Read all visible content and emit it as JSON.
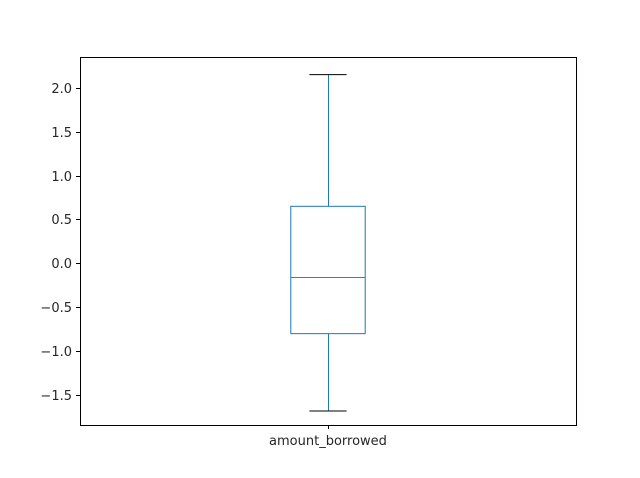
{
  "chart_data": {
    "type": "box",
    "categories": [
      "amount_borrowed"
    ],
    "series": [
      {
        "whisker_low": -1.68,
        "q1": -0.8,
        "median": -0.16,
        "q3": 0.65,
        "whisker_high": 2.15
      }
    ],
    "ylim": [
      -1.84,
      2.35
    ],
    "yticks": [
      -1.5,
      -1.0,
      -0.5,
      0.0,
      0.5,
      1.0,
      1.5,
      2.0
    ],
    "ytick_labels": [
      "−1.5",
      "−1.0",
      "−0.5",
      "0.0",
      "0.5",
      "1.0",
      "1.5",
      "2.0"
    ],
    "xlabel": "",
    "ylabel": "",
    "title": "",
    "grid": false,
    "colors": {
      "box": "#1f77b4",
      "median": "#2ca02c",
      "whisker": "#1f77b4",
      "cap": "#000000",
      "axes": "#000000",
      "text": "#262626"
    }
  }
}
